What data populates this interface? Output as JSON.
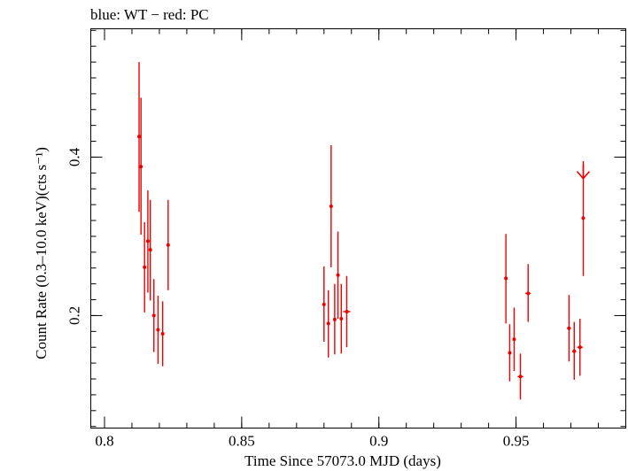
{
  "chart_data": {
    "type": "scatter",
    "title": "blue: WT − red: PC",
    "xlabel": "Time Since 57073.0 MJD (days)",
    "ylabel": "Count Rate (0.3–10.0 keV)(cts s⁻¹)",
    "xlim": [
      0.795,
      0.99
    ],
    "ylim": [
      0.058,
      0.562
    ],
    "xticks": [
      {
        "value": 0.8,
        "label": "0.8"
      },
      {
        "value": 0.85,
        "label": "0.85"
      },
      {
        "value": 0.9,
        "label": "0.9"
      },
      {
        "value": 0.95,
        "label": "0.95"
      }
    ],
    "yticks": [
      {
        "value": 0.2,
        "label": "0.2"
      },
      {
        "value": 0.4,
        "label": "0.4"
      }
    ],
    "x_minor_step": 0.01,
    "y_minor_step": 0.02,
    "grid": false,
    "series": [
      {
        "color": "#ee0000",
        "points": [
          {
            "x": 0.8126,
            "xerr": 0.0003,
            "y": 0.426,
            "ylo": 0.331,
            "yhi": 0.52
          },
          {
            "x": 0.8133,
            "xerr": 0.0003,
            "y": 0.388,
            "ylo": 0.302,
            "yhi": 0.475
          },
          {
            "x": 0.8146,
            "xerr": 0.0004,
            "y": 0.261,
            "ylo": 0.204,
            "yhi": 0.318
          },
          {
            "x": 0.8158,
            "xerr": 0.0003,
            "y": 0.294,
            "ylo": 0.229,
            "yhi": 0.358
          },
          {
            "x": 0.8167,
            "xerr": 0.0003,
            "y": 0.283,
            "ylo": 0.219,
            "yhi": 0.346
          },
          {
            "x": 0.818,
            "xerr": 0.0004,
            "y": 0.2,
            "ylo": 0.154,
            "yhi": 0.246
          },
          {
            "x": 0.8195,
            "xerr": 0.0005,
            "y": 0.182,
            "ylo": 0.139,
            "yhi": 0.225
          },
          {
            "x": 0.8212,
            "xerr": 0.0005,
            "y": 0.177,
            "ylo": 0.136,
            "yhi": 0.218
          },
          {
            "x": 0.8232,
            "xerr": 0.0005,
            "y": 0.289,
            "ylo": 0.232,
            "yhi": 0.346
          },
          {
            "x": 0.88,
            "xerr": 0.0005,
            "y": 0.214,
            "ylo": 0.167,
            "yhi": 0.262
          },
          {
            "x": 0.8816,
            "xerr": 0.0005,
            "y": 0.19,
            "ylo": 0.147,
            "yhi": 0.232
          },
          {
            "x": 0.8826,
            "xerr": 0.0003,
            "y": 0.338,
            "ylo": 0.261,
            "yhi": 0.415
          },
          {
            "x": 0.8839,
            "xerr": 0.0005,
            "y": 0.195,
            "ylo": 0.151,
            "yhi": 0.24
          },
          {
            "x": 0.8851,
            "xerr": 0.0003,
            "y": 0.251,
            "ylo": 0.196,
            "yhi": 0.306
          },
          {
            "x": 0.8863,
            "xerr": 0.0005,
            "y": 0.196,
            "ylo": 0.152,
            "yhi": 0.24
          },
          {
            "x": 0.8883,
            "xerr": 0.0013,
            "y": 0.205,
            "ylo": 0.16,
            "yhi": 0.25
          },
          {
            "x": 0.9463,
            "xerr": 0.0003,
            "y": 0.247,
            "ylo": 0.19,
            "yhi": 0.303
          },
          {
            "x": 0.9477,
            "xerr": 0.0005,
            "y": 0.153,
            "ylo": 0.117,
            "yhi": 0.189
          },
          {
            "x": 0.9493,
            "xerr": 0.0005,
            "y": 0.17,
            "ylo": 0.13,
            "yhi": 0.21
          },
          {
            "x": 0.9516,
            "xerr": 0.001,
            "y": 0.123,
            "ylo": 0.094,
            "yhi": 0.152
          },
          {
            "x": 0.9544,
            "xerr": 0.001,
            "y": 0.228,
            "ylo": 0.192,
            "yhi": 0.265
          },
          {
            "x": 0.9693,
            "xerr": 0.0007,
            "y": 0.184,
            "ylo": 0.142,
            "yhi": 0.226
          },
          {
            "x": 0.9712,
            "xerr": 0.0007,
            "y": 0.155,
            "ylo": 0.119,
            "yhi": 0.192
          },
          {
            "x": 0.9733,
            "xerr": 0.001,
            "y": 0.16,
            "ylo": 0.124,
            "yhi": 0.196
          },
          {
            "x": 0.9745,
            "xerr": 0.0003,
            "y": 0.323,
            "ylo": 0.25,
            "yhi": 0.395
          }
        ],
        "upper_limits": [
          {
            "x": 0.9745,
            "y": 0.373
          }
        ]
      }
    ]
  }
}
